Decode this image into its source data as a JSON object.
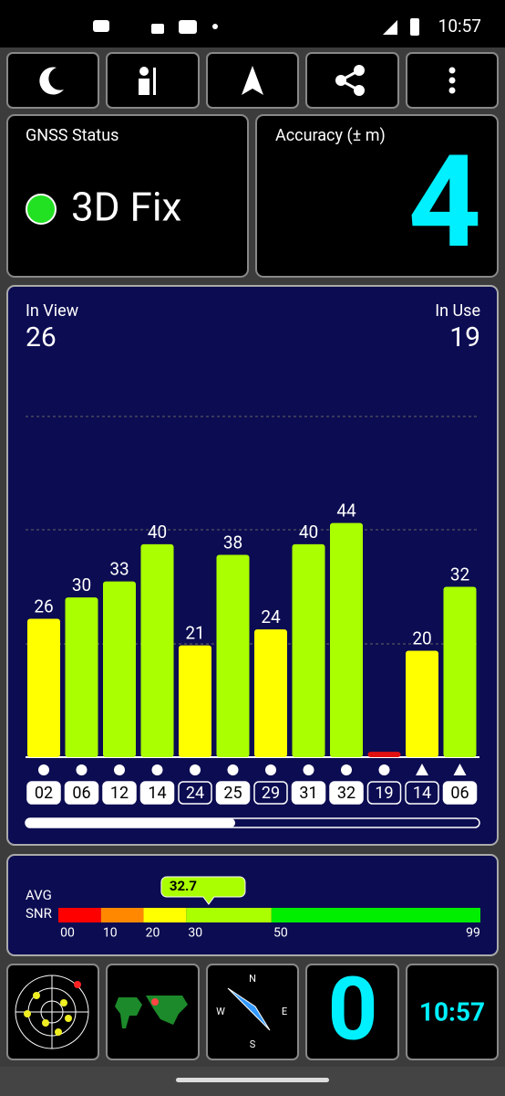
{
  "status_bar": {
    "time": "10:57"
  },
  "gnss_status": {
    "title": "GNSS Status",
    "fix": "3D Fix",
    "fix_color": "#22e022"
  },
  "accuracy": {
    "title": "Accuracy (± m)",
    "value": 4
  },
  "satellites": {
    "in_view_label": "In View",
    "in_view": 26,
    "in_use_label": "In Use",
    "in_use": 19,
    "snr_max": 64,
    "bars": [
      {
        "id": "02",
        "snr": 26,
        "color": "#ffff00",
        "used": true,
        "shape": "circle",
        "show_label": true
      },
      {
        "id": "06",
        "snr": 30,
        "color": "#aaff00",
        "used": true,
        "shape": "circle",
        "show_label": true
      },
      {
        "id": "12",
        "snr": 33,
        "color": "#aaff00",
        "used": true,
        "shape": "circle",
        "show_label": true
      },
      {
        "id": "14",
        "snr": 40,
        "color": "#aaff00",
        "used": true,
        "shape": "circle",
        "show_label": true
      },
      {
        "id": "24",
        "snr": 21,
        "color": "#ffff00",
        "used": false,
        "shape": "circle",
        "show_label": true
      },
      {
        "id": "25",
        "snr": 38,
        "color": "#aaff00",
        "used": true,
        "shape": "circle",
        "show_label": true
      },
      {
        "id": "29",
        "snr": 24,
        "color": "#ffff00",
        "used": false,
        "shape": "circle",
        "show_label": true
      },
      {
        "id": "31",
        "snr": 40,
        "color": "#aaff00",
        "used": true,
        "shape": "circle",
        "show_label": true
      },
      {
        "id": "32",
        "snr": 44,
        "color": "#aaff00",
        "used": true,
        "shape": "circle",
        "show_label": true
      },
      {
        "id": "19",
        "snr": 1,
        "color": "#e01010",
        "used": false,
        "shape": "circle",
        "show_label": false
      },
      {
        "id": "14",
        "snr": 20,
        "color": "#ffff00",
        "used": false,
        "shape": "triangle",
        "show_label": true
      },
      {
        "id": "06",
        "snr": 32,
        "color": "#aaff00",
        "used": true,
        "shape": "triangle",
        "show_label": true
      }
    ]
  },
  "snr": {
    "label_1": "AVG",
    "label_2": "SNR",
    "avg": 32.7,
    "xlim": [
      0,
      99
    ],
    "ticks": [
      {
        "value": 0,
        "label": "00"
      },
      10,
      20,
      30,
      50,
      99
    ],
    "segments": [
      {
        "from": 0,
        "to": 10,
        "color": "#ff0000"
      },
      {
        "from": 10,
        "to": 20,
        "color": "#ff8800"
      },
      {
        "from": 20,
        "to": 30,
        "color": "#ffff00"
      },
      {
        "from": 30,
        "to": 50,
        "color": "#aaff00"
      },
      {
        "from": 50,
        "to": 99,
        "color": "#00ee00"
      }
    ]
  },
  "bottom": {
    "compass": [
      "N",
      "E",
      "S",
      "W"
    ],
    "satellites": 0,
    "clock": "10:57"
  }
}
